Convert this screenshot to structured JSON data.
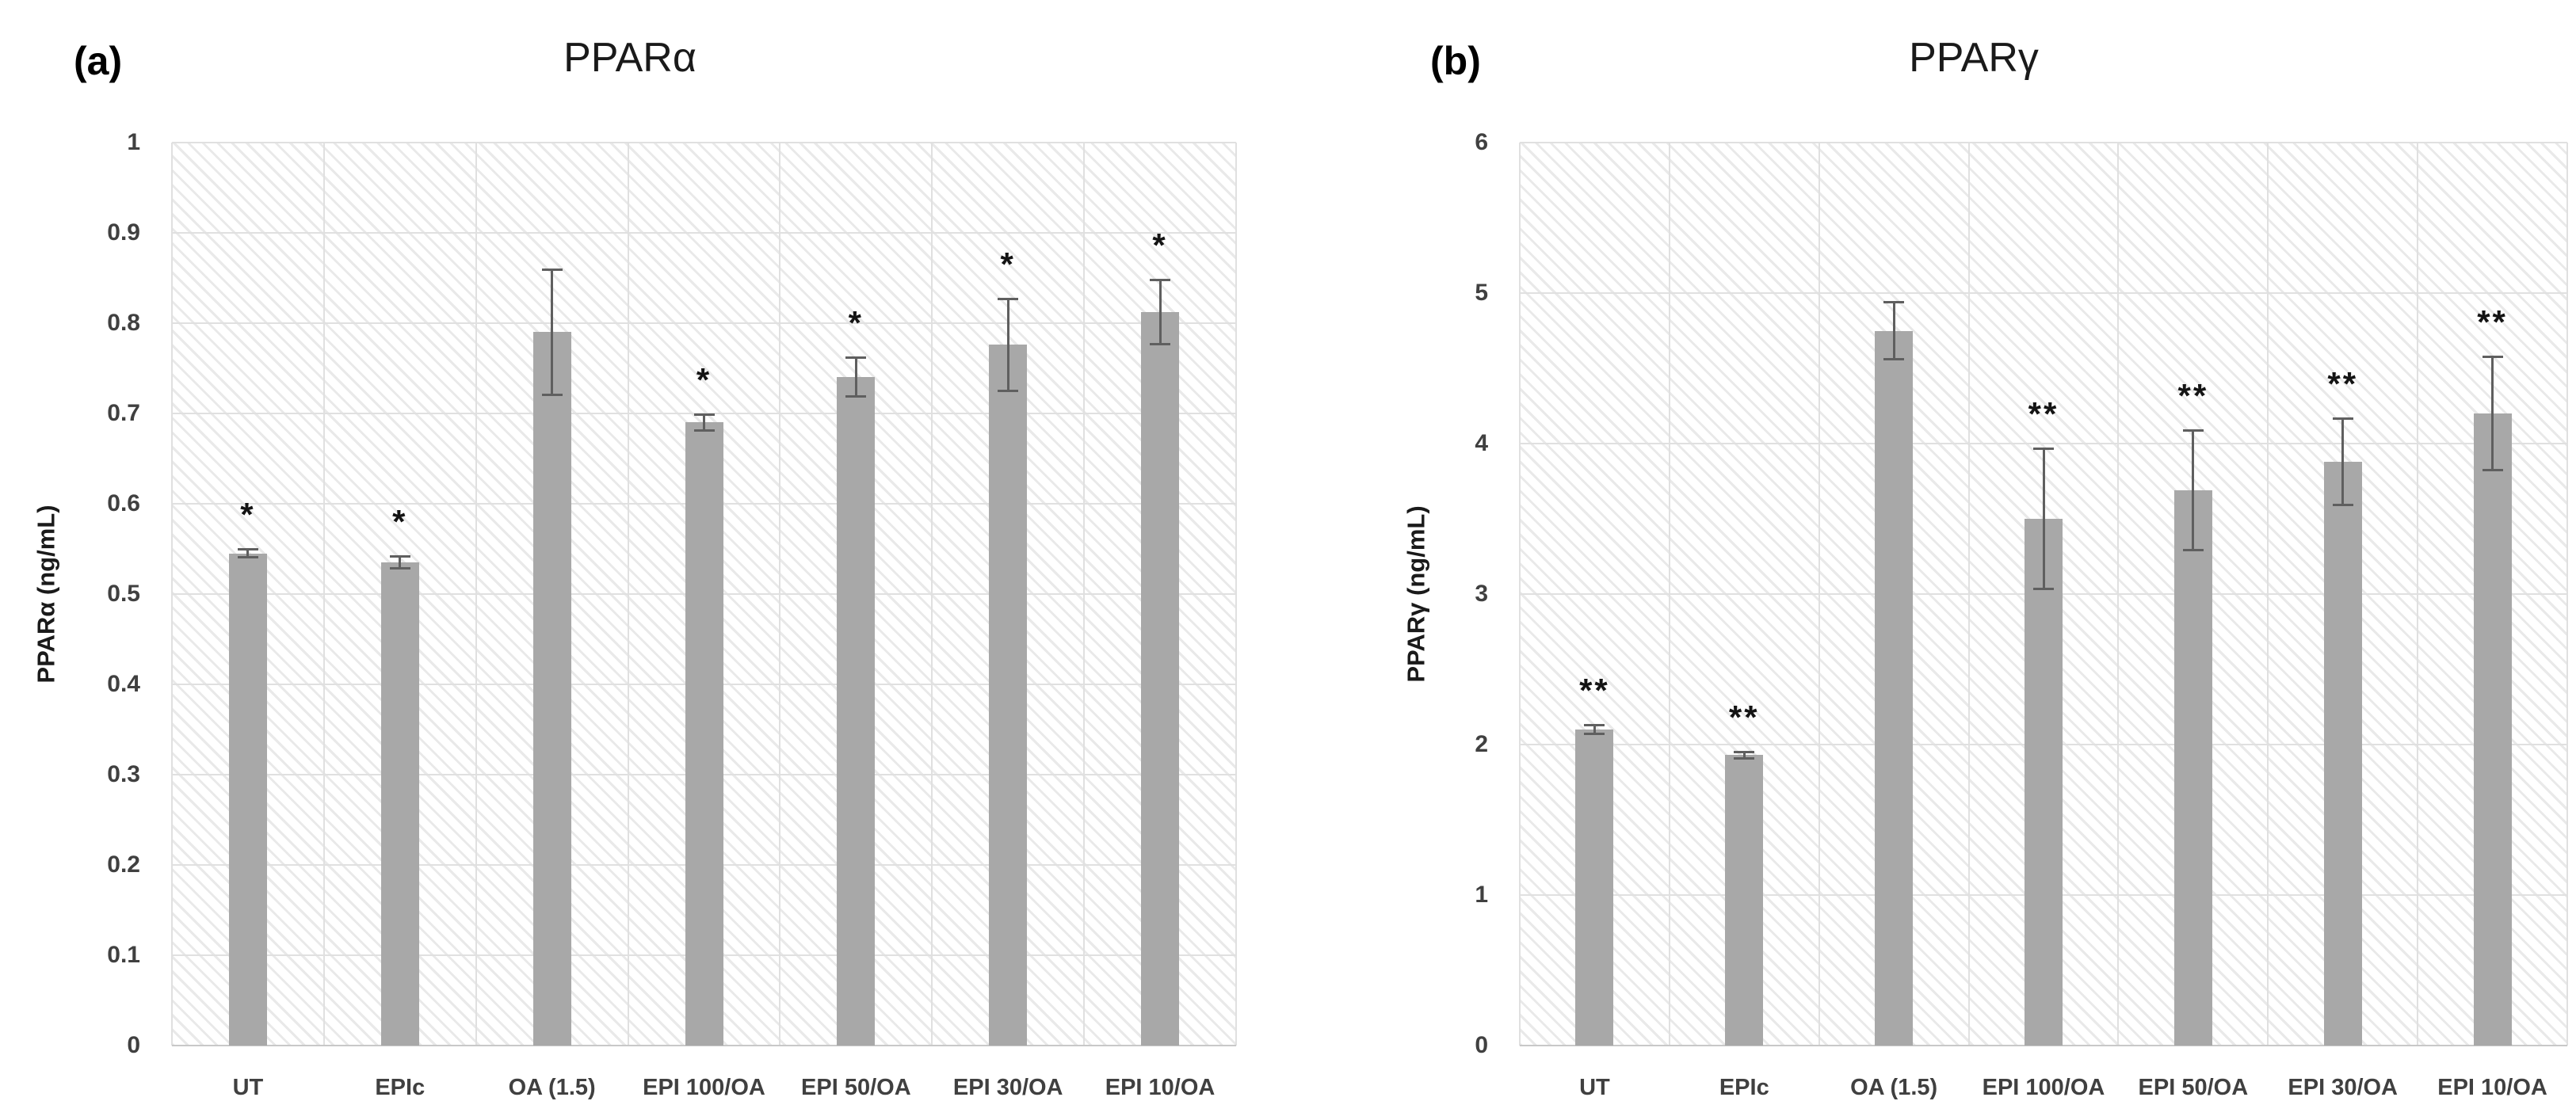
{
  "figure": {
    "description": "Two-panel bar chart figure of PPAR ELISA results",
    "background": "#ffffff"
  },
  "colors": {
    "bar_fill": "#a8a8a8",
    "error_bar": "#5f5f5f",
    "gridline": "#e0e0e0",
    "axis_line": "#c8c8c8",
    "hatch_pattern": "#e9e9e9",
    "tick_label": "#404040",
    "title_text": "#1a1a1a",
    "annotation_text": "#141414"
  },
  "chart_data": [
    {
      "type": "bar",
      "panel_label": "(a)",
      "title": "PPARα",
      "y_axis_title": "PPARα (ng/mL)",
      "xlabel": "",
      "categories": [
        "UT",
        "EPIc",
        "OA (1.5)",
        "EPI 100/OA",
        "EPI 50/OA",
        "EPI 30/OA",
        "EPI 10/OA"
      ],
      "values": [
        0.545,
        0.535,
        0.79,
        0.69,
        0.74,
        0.776,
        0.812
      ],
      "errors": [
        0.005,
        0.007,
        0.07,
        0.009,
        0.022,
        0.051,
        0.036
      ],
      "annotations": [
        "*",
        "*",
        "",
        "*",
        "*",
        "*",
        "*"
      ],
      "ylim": [
        0,
        1
      ],
      "ytick_step": 0.1,
      "y_tick_labels": [
        "0",
        "0.1",
        "0.2",
        "0.3",
        "0.4",
        "0.5",
        "0.6",
        "0.7",
        "0.8",
        "0.9",
        "1"
      ],
      "grid": true,
      "legend": false,
      "plot_background": "diagonal-hatch"
    },
    {
      "type": "bar",
      "panel_label": "(b)",
      "title": "PPARγ",
      "y_axis_title": "PPARγ (ng/mL)",
      "xlabel": "",
      "categories": [
        "UT",
        "EPIc",
        "OA (1.5)",
        "EPI 100/OA",
        "EPI 50/OA",
        "EPI 30/OA",
        "EPI 10/OA"
      ],
      "values": [
        2.1,
        1.93,
        4.75,
        3.5,
        3.69,
        3.88,
        4.2
      ],
      "errors": [
        0.03,
        0.025,
        0.19,
        0.47,
        0.4,
        0.29,
        0.38
      ],
      "annotations": [
        "**",
        "**",
        "",
        "**",
        "**",
        "**",
        "**"
      ],
      "ylim": [
        0,
        6
      ],
      "ytick_step": 1,
      "y_tick_labels": [
        "0",
        "1",
        "2",
        "3",
        "4",
        "5",
        "6"
      ],
      "grid": true,
      "legend": false,
      "plot_background": "diagonal-hatch"
    }
  ]
}
